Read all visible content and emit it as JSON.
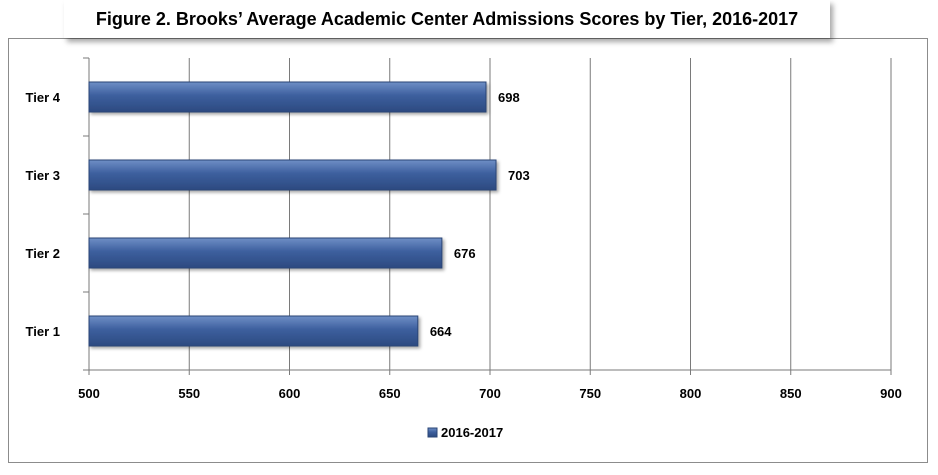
{
  "chart_data": {
    "type": "bar",
    "orientation": "horizontal",
    "title": "Figure 2. Brooks’ Average Academic Center Admissions Scores by Tier, 2016-2017",
    "categories": [
      "Tier 1",
      "Tier 2",
      "Tier 3",
      "Tier 4"
    ],
    "series": [
      {
        "name": "2016-2017",
        "values": [
          664,
          676,
          703,
          698
        ]
      }
    ],
    "xlim": [
      500,
      900
    ],
    "x_ticks": [
      500,
      550,
      600,
      650,
      700,
      750,
      800,
      850,
      900
    ],
    "grid": "vertical",
    "legend_position": "bottom",
    "bar_color": "#3d5f9e",
    "data_labels": true
  }
}
